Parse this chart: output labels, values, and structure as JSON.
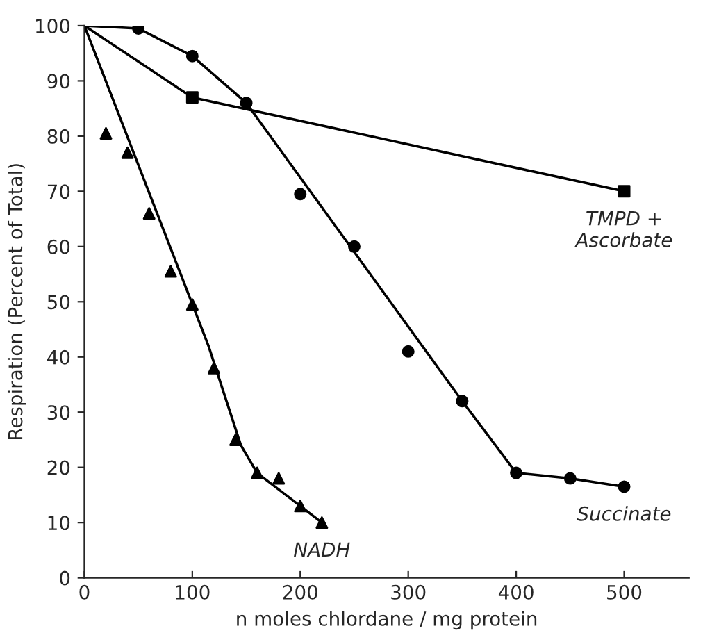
{
  "chart_data": {
    "type": "scatter",
    "xlabel": "n moles chlordane / mg protein",
    "ylabel": "Respiration (Percent of Total)",
    "xlim": [
      0,
      560
    ],
    "ylim": [
      0,
      100
    ],
    "xticks": [
      0,
      100,
      200,
      300,
      400,
      500
    ],
    "yticks": [
      0,
      10,
      20,
      30,
      40,
      50,
      60,
      70,
      80,
      90,
      100
    ],
    "grid": false,
    "legend": false,
    "series": [
      {
        "name": "TMPD +\nAscorbate",
        "marker": "square",
        "color": "#000000",
        "x": [
          100,
          500
        ],
        "values": [
          87,
          70
        ]
      },
      {
        "name": "Succinate",
        "marker": "circle",
        "color": "#000000",
        "x": [
          50,
          100,
          150,
          200,
          250,
          300,
          350,
          400,
          450,
          500
        ],
        "values": [
          99.5,
          94.5,
          86,
          69.5,
          60,
          41,
          32,
          19,
          18,
          16.5
        ]
      },
      {
        "name": "NADH",
        "marker": "triangle",
        "color": "#000000",
        "x": [
          20,
          40,
          60,
          80,
          100,
          120,
          140,
          160,
          180,
          200,
          220
        ],
        "values": [
          80.5,
          77,
          66,
          55.5,
          49.5,
          38,
          25,
          19,
          18,
          13,
          10
        ]
      },
      {
        "type": "line",
        "marker": "none",
        "line_style": "solid",
        "color": "#000000",
        "x": [
          0,
          100,
          500
        ],
        "values": [
          100,
          87,
          70
        ]
      },
      {
        "type": "line",
        "marker": "none",
        "line_style": "solid",
        "color": "#000000",
        "x": [
          0,
          50,
          100,
          150,
          350,
          400,
          450,
          500
        ],
        "values": [
          100,
          99.5,
          94.5,
          86,
          32,
          19,
          18,
          16.5
        ]
      },
      {
        "type": "line",
        "marker": "none",
        "line_style": "solid",
        "color": "#000000",
        "x": [
          0,
          115,
          130,
          145,
          160,
          220
        ],
        "values": [
          100,
          42,
          33,
          24,
          19,
          10
        ]
      }
    ]
  }
}
